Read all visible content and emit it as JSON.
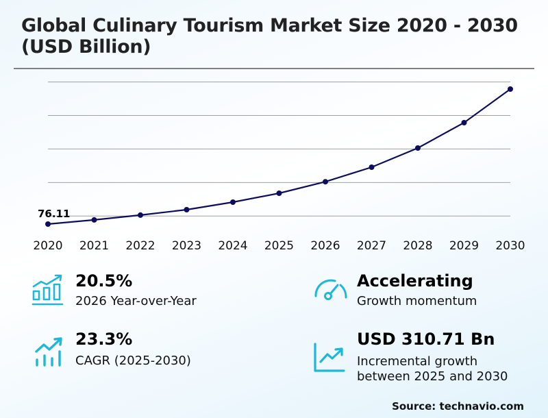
{
  "header": {
    "title": "Global Culinary Tourism Market Size 2020 - 2030 (USD Billion)"
  },
  "chart_data": {
    "type": "line",
    "title": "Global Culinary Tourism Market Size 2020 - 2030 (USD Billion)",
    "xlabel": "",
    "ylabel": "USD Billion",
    "categories": [
      "2020",
      "2021",
      "2022",
      "2023",
      "2024",
      "2025",
      "2026",
      "2027",
      "2028",
      "2029",
      "2030"
    ],
    "values": [
      76.11,
      88.5,
      102.8,
      119.0,
      141.5,
      168.0,
      202.4,
      245.7,
      303.0,
      378.6,
      478.7
    ],
    "ylim": [
      0,
      500
    ],
    "gridlines": [
      100,
      200,
      300,
      400,
      500
    ],
    "grid": true,
    "annotations": [
      {
        "x": "2020",
        "label": "76.11"
      }
    ],
    "line_color": "#0d0d5c",
    "legend": null
  },
  "stats": [
    {
      "icon": "bar-chart-growth-icon",
      "value": "20.5%",
      "desc": "2026 Year-over-Year"
    },
    {
      "icon": "speedometer-icon",
      "value": "Accelerating",
      "desc": "Growth momentum"
    },
    {
      "icon": "trend-up-bars-icon",
      "value": "23.3%",
      "desc": "CAGR (2025-2030)"
    },
    {
      "icon": "line-chart-up-icon",
      "value": "USD 310.71 Bn",
      "desc_line1": "Incremental growth",
      "desc_line2": "between 2025 and 2030"
    }
  ],
  "footer": {
    "source": "Source: technavio.com"
  },
  "colors": {
    "accent": "#1fb6d8",
    "line": "#0d0d5c",
    "grid": "#a0a0a0"
  }
}
